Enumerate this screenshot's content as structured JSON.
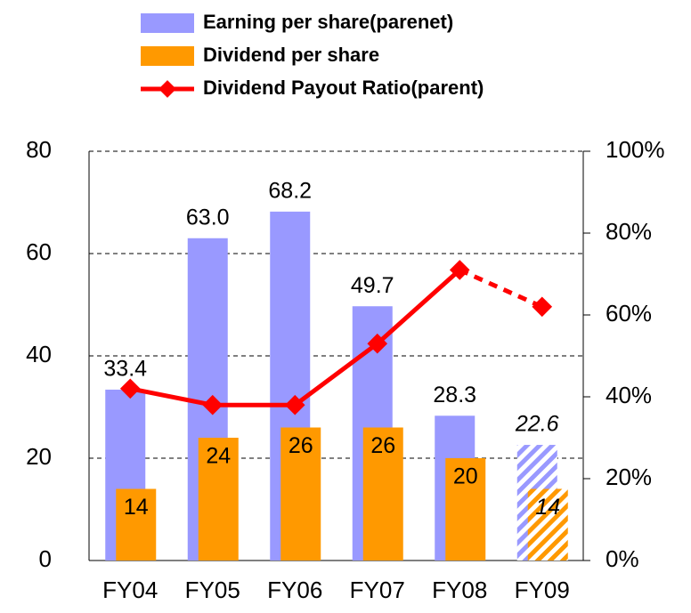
{
  "chart_data": {
    "type": "bar_line",
    "categories": [
      "FY04",
      "FY05",
      "FY06",
      "FY07",
      "FY08",
      "FY09"
    ],
    "forecast_categories": [
      "FY09"
    ],
    "series": [
      {
        "name": "Earning per share(parenet)",
        "type": "bar",
        "color": "#9999ff",
        "values": [
          33.4,
          63.0,
          68.2,
          49.7,
          28.3,
          22.6
        ],
        "value_labels": [
          "33.4",
          "63.0",
          "68.2",
          "49.7",
          "28.3",
          "22.6"
        ]
      },
      {
        "name": "Dividend per share",
        "type": "bar",
        "color": "#ff9900",
        "values": [
          14,
          24,
          26,
          26,
          20,
          14
        ]
      },
      {
        "name": "Dividend Payout Ratio(parent)",
        "type": "line",
        "axis": "y2",
        "color": "#ff0000",
        "values": [
          42,
          38,
          38,
          53,
          71,
          62
        ]
      }
    ],
    "ylim": [
      0,
      80
    ],
    "yticks": [
      0,
      20,
      40,
      60,
      80
    ],
    "y2lim": [
      0,
      100
    ],
    "y2ticks": [
      {
        "value": 0,
        "label": "0%"
      },
      {
        "value": 20,
        "label": "20%"
      },
      {
        "value": 40,
        "label": "40%"
      },
      {
        "value": 60,
        "label": "60%"
      },
      {
        "value": 80,
        "label": "80%"
      },
      {
        "value": 100,
        "label": "100%"
      }
    ],
    "grid": true
  }
}
